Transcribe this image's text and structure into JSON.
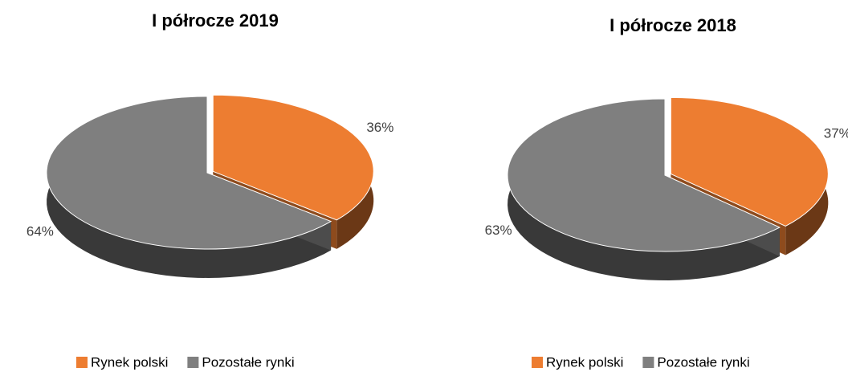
{
  "chart_data": [
    {
      "type": "pie",
      "title": "I półrocze 2019",
      "categories": [
        "Rynek polski",
        "Pozostałe rynki"
      ],
      "values": [
        36,
        64
      ],
      "value_labels": [
        "36%",
        "64%"
      ],
      "colors": [
        "#ED7D31",
        "#7F7F7F"
      ],
      "legend": "bottom"
    },
    {
      "type": "pie",
      "title": "I półrocze 2018",
      "categories": [
        "Rynek polski",
        "Pozostałe rynki"
      ],
      "values": [
        37,
        63
      ],
      "value_labels": [
        "37%",
        "63%"
      ],
      "colors": [
        "#ED7D31",
        "#7F7F7F"
      ],
      "legend": "bottom"
    }
  ]
}
